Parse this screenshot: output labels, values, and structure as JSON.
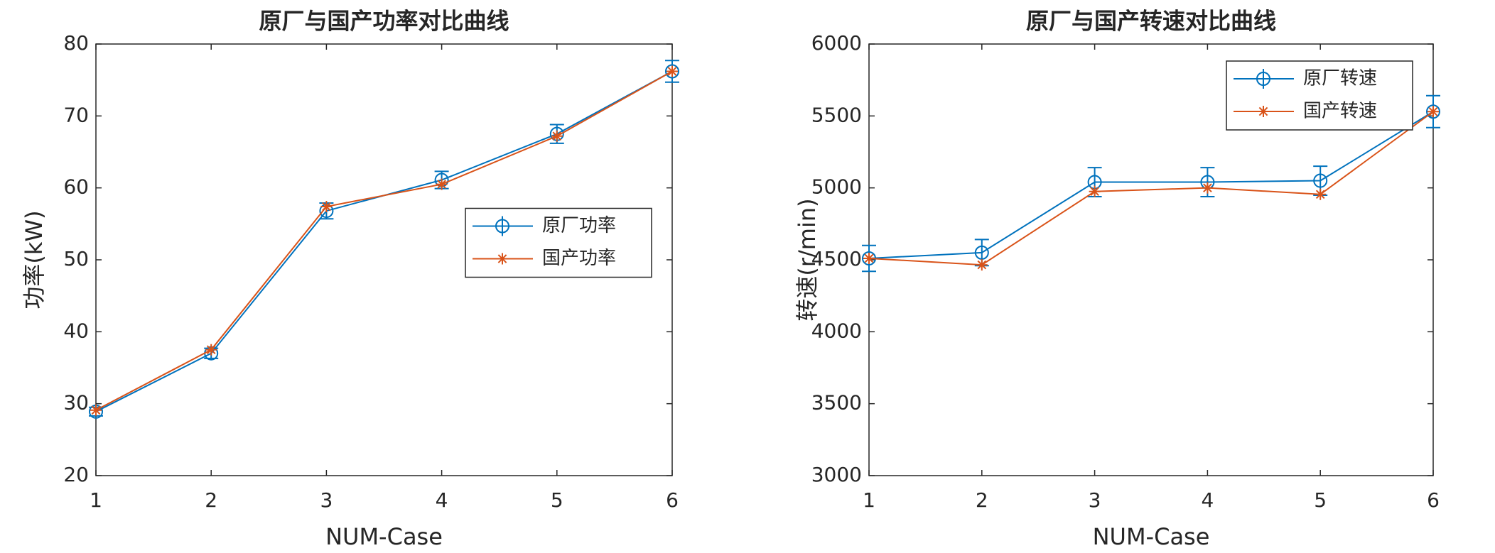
{
  "chart_data": [
    {
      "type": "line",
      "title": "原厂与国产功率对比曲线",
      "x_label": "NUM-Case",
      "y_label": "功率(kW)",
      "x": [
        1,
        2,
        3,
        4,
        5,
        6
      ],
      "series": [
        {
          "name": "原厂功率",
          "color": "#0072bd",
          "marker": "circle",
          "values": [
            28.9,
            37.0,
            56.8,
            61.1,
            67.5,
            76.2
          ],
          "error": [
            0.6,
            0.7,
            1.1,
            1.2,
            1.3,
            1.5
          ]
        },
        {
          "name": "国产功率",
          "color": "#d95319",
          "marker": "asterisk",
          "values": [
            29.1,
            37.5,
            57.4,
            60.5,
            67.2,
            76.2
          ]
        }
      ],
      "xlim": [
        1,
        6
      ],
      "xticks": [
        1,
        2,
        3,
        4,
        5,
        6
      ],
      "ylim": [
        20,
        80
      ],
      "yticks": [
        20,
        30,
        40,
        50,
        60,
        70,
        80
      ],
      "legend": "center right",
      "grid": false
    },
    {
      "type": "line",
      "title": "原厂与国产转速对比曲线",
      "x_label": "NUM-Case",
      "y_label": "转速(r/min)",
      "x": [
        1,
        2,
        3,
        4,
        5,
        6
      ],
      "series": [
        {
          "name": "原厂转速",
          "color": "#0072bd",
          "marker": "circle",
          "values": [
            4510,
            4550,
            5040,
            5040,
            5050,
            5530
          ],
          "error": [
            90,
            91,
            101,
            101,
            101,
            111
          ]
        },
        {
          "name": "国产转速",
          "color": "#d95319",
          "marker": "asterisk",
          "values": [
            4510,
            4465,
            4975,
            5000,
            4955,
            5530
          ]
        }
      ],
      "xlim": [
        1,
        6
      ],
      "xticks": [
        1,
        2,
        3,
        4,
        5,
        6
      ],
      "ylim": [
        3000,
        6000
      ],
      "yticks": [
        3000,
        3500,
        4000,
        4500,
        5000,
        5500,
        6000
      ],
      "legend": "upper right",
      "grid": false
    }
  ]
}
